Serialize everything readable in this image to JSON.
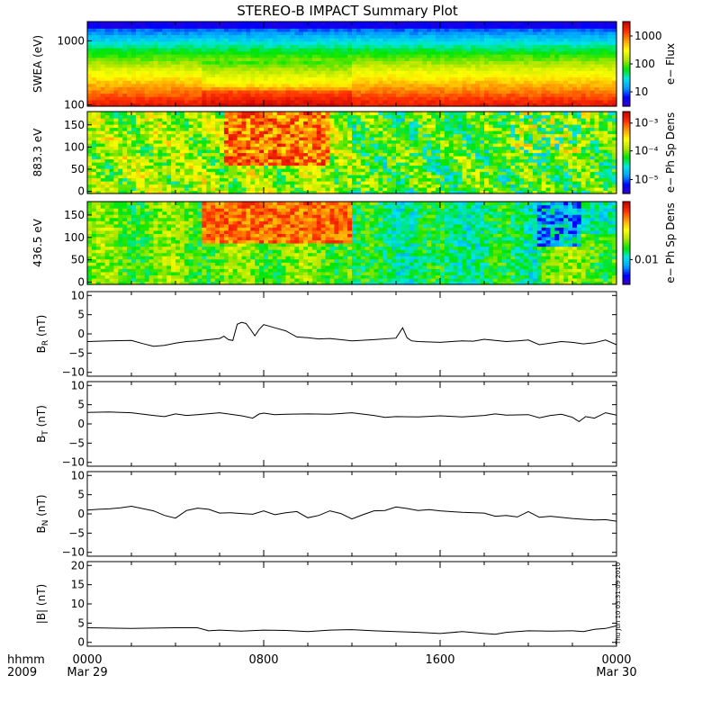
{
  "title": "STEREO-B IMPACT Summary Plot",
  "stamp": "Thu Jun 10 03:31:09 2010",
  "time_axis": {
    "row1": "hhmm",
    "row2": "2009",
    "ticks": [
      {
        "hour": 0,
        "l1": "0000",
        "l2": "Mar 29"
      },
      {
        "hour": 8,
        "l1": "0800",
        "l2": ""
      },
      {
        "hour": 16,
        "l1": "1600",
        "l2": ""
      },
      {
        "hour": 24,
        "l1": "0000",
        "l2": "Mar 30"
      }
    ]
  },
  "colors": {
    "ramp": [
      "#3a00c8",
      "#0000ff",
      "#00a0ff",
      "#00e6e6",
      "#00e600",
      "#b4e600",
      "#ffff00",
      "#ffa000",
      "#ff3000",
      "#c80000"
    ],
    "line": "#000000",
    "gap": "#ffffff"
  },
  "chart_data": [
    {
      "type": "heatmap",
      "ylabel": "SWEA (eV)",
      "ylog": true,
      "ylim": [
        95,
        2000
      ],
      "yticks": [
        {
          "v": 100,
          "l": "100"
        },
        {
          "v": 1000,
          "l": "1000"
        }
      ],
      "colorbar_label": "e− Flux",
      "colorbar_ticks": [
        {
          "f": 0.17,
          "l": "10"
        },
        {
          "f": 0.5,
          "l": "100"
        },
        {
          "f": 0.83,
          "l": "1000"
        }
      ],
      "pattern": "energy"
    },
    {
      "type": "heatmap",
      "ylabel": "883.3 eV",
      "ylim": [
        -5,
        180
      ],
      "yticks": [
        {
          "v": 0,
          "l": "0"
        },
        {
          "v": 50,
          "l": "50"
        },
        {
          "v": 100,
          "l": "100"
        },
        {
          "v": 150,
          "l": "150"
        }
      ],
      "colorbar_label": "e− Ph Sp Dens",
      "colorbar_ticks": [
        {
          "f": 0.17,
          "l": "10⁻⁵"
        },
        {
          "f": 0.52,
          "l": "10⁻⁴"
        },
        {
          "f": 0.86,
          "l": "10⁻³"
        }
      ],
      "pattern": "pitch883"
    },
    {
      "type": "heatmap",
      "ylabel": "436.5 eV",
      "ylim": [
        -5,
        180
      ],
      "yticks": [
        {
          "v": 0,
          "l": "0"
        },
        {
          "v": 50,
          "l": "50"
        },
        {
          "v": 100,
          "l": "100"
        },
        {
          "v": 150,
          "l": "150"
        }
      ],
      "colorbar_label": "e− Ph Sp Dens",
      "colorbar_ticks": [
        {
          "f": 0.3,
          "l": "0.01"
        }
      ],
      "pattern": "pitch436"
    },
    {
      "type": "line",
      "ylabel": "B",
      "ysub": "R",
      "yunit": " (nT)",
      "ylim": [
        -11,
        11
      ],
      "yticks": [
        -10,
        -5,
        0,
        5,
        10
      ],
      "x": [
        0,
        1,
        2,
        2.5,
        3,
        3.5,
        4,
        4.5,
        5,
        5.5,
        6,
        6.2,
        6.4,
        6.6,
        6.8,
        7,
        7.2,
        7.4,
        7.6,
        7.8,
        8,
        8.5,
        9,
        9.5,
        10,
        10.5,
        11,
        12,
        13,
        14,
        14.3,
        14.5,
        14.7,
        15,
        16,
        17,
        17.5,
        18,
        18.5,
        19,
        19.5,
        20,
        20.5,
        21,
        21.5,
        22,
        22.5,
        23,
        23.5,
        24
      ],
      "y": [
        -2,
        -1.8,
        -1.7,
        -2.5,
        -3.2,
        -3,
        -2.4,
        -2,
        -1.8,
        -1.5,
        -1.2,
        -0.6,
        -1.5,
        -1.7,
        2.5,
        3,
        2.7,
        1.2,
        -0.5,
        1.2,
        2.4,
        1.6,
        0.8,
        -0.8,
        -1,
        -1.3,
        -1.2,
        -1.8,
        -1.5,
        -1.1,
        1.6,
        -1,
        -1.8,
        -2,
        -2.2,
        -1.8,
        -1.9,
        -1.4,
        -1.7,
        -2,
        -1.8,
        -1.6,
        -2.8,
        -2.4,
        -2,
        -2.2,
        -2.6,
        -2.3,
        -1.6,
        -2.8
      ]
    },
    {
      "type": "line",
      "ylabel": "B",
      "ysub": "T",
      "yunit": " (nT)",
      "ylim": [
        -11,
        11
      ],
      "yticks": [
        -10,
        -5,
        0,
        5,
        10
      ],
      "x": [
        0,
        1,
        2,
        3,
        3.5,
        4,
        4.5,
        5,
        6,
        7,
        7.5,
        7.8,
        8,
        8.5,
        9,
        10,
        11,
        12,
        13,
        13.5,
        14,
        15,
        16,
        17,
        18,
        18.5,
        19,
        20,
        20.5,
        21,
        21.5,
        22,
        22.3,
        22.6,
        23,
        23.5,
        24
      ],
      "y": [
        3,
        3.1,
        2.9,
        2.2,
        1.9,
        2.6,
        2.2,
        2.4,
        2.9,
        2.1,
        1.5,
        2.6,
        2.8,
        2.4,
        2.5,
        2.6,
        2.5,
        2.9,
        2.2,
        1.7,
        1.9,
        1.8,
        2.1,
        1.8,
        2.2,
        2.6,
        2.3,
        2.4,
        1.6,
        2.2,
        2.5,
        1.7,
        0.6,
        1.9,
        1.5,
        2.9,
        2.3
      ]
    },
    {
      "type": "line",
      "ylabel": "B",
      "ysub": "N",
      "yunit": " (nT)",
      "ylim": [
        -11,
        11
      ],
      "yticks": [
        -10,
        -5,
        0,
        5,
        10
      ],
      "x": [
        0,
        0.5,
        1,
        1.5,
        2,
        3,
        3.5,
        4,
        4.5,
        5,
        5.5,
        6,
        6.5,
        7,
        7.5,
        8,
        8.5,
        9,
        9.5,
        10,
        10.5,
        11,
        11.5,
        12,
        12.5,
        13,
        13.5,
        14,
        14.5,
        15,
        15.5,
        16,
        17,
        18,
        18.5,
        19,
        19.5,
        20,
        20.5,
        21,
        22,
        22.5,
        23,
        23.5,
        24
      ],
      "y": [
        1,
        1.2,
        1.3,
        1.6,
        2,
        0.8,
        -0.4,
        -1.1,
        0.9,
        1.5,
        1.2,
        0.2,
        0.3,
        0.1,
        -0.1,
        0.8,
        -0.2,
        0.3,
        0.6,
        -1,
        -0.4,
        0.8,
        0.1,
        -1.3,
        -0.2,
        0.8,
        0.9,
        1.8,
        1.4,
        0.9,
        1.1,
        0.8,
        0.4,
        0.2,
        -0.6,
        -0.4,
        -0.8,
        0.6,
        -0.9,
        -0.6,
        -1.2,
        -1.4,
        -1.6,
        -1.5,
        -1.9
      ]
    },
    {
      "type": "line",
      "ylabel": "|B|",
      "ysub": "",
      "yunit": " (nT)",
      "ylim": [
        -1,
        21
      ],
      "yticks": [
        0,
        5,
        10,
        15,
        20
      ],
      "x": [
        0,
        1,
        2,
        3,
        4,
        5,
        5.5,
        6,
        7,
        8,
        9,
        10,
        11,
        12,
        13,
        14,
        15,
        16,
        17,
        18,
        18.5,
        19,
        20,
        21,
        22,
        22.5,
        23,
        23.5,
        24
      ],
      "y": [
        3.8,
        3.7,
        3.6,
        3.7,
        3.8,
        3.8,
        3,
        3.2,
        2.9,
        3.2,
        3.1,
        2.8,
        3.2,
        3.3,
        3,
        2.8,
        2.6,
        2.3,
        2.8,
        2.3,
        2.1,
        2.6,
        3,
        2.9,
        3,
        2.8,
        3.4,
        3.6,
        4.3
      ]
    }
  ]
}
